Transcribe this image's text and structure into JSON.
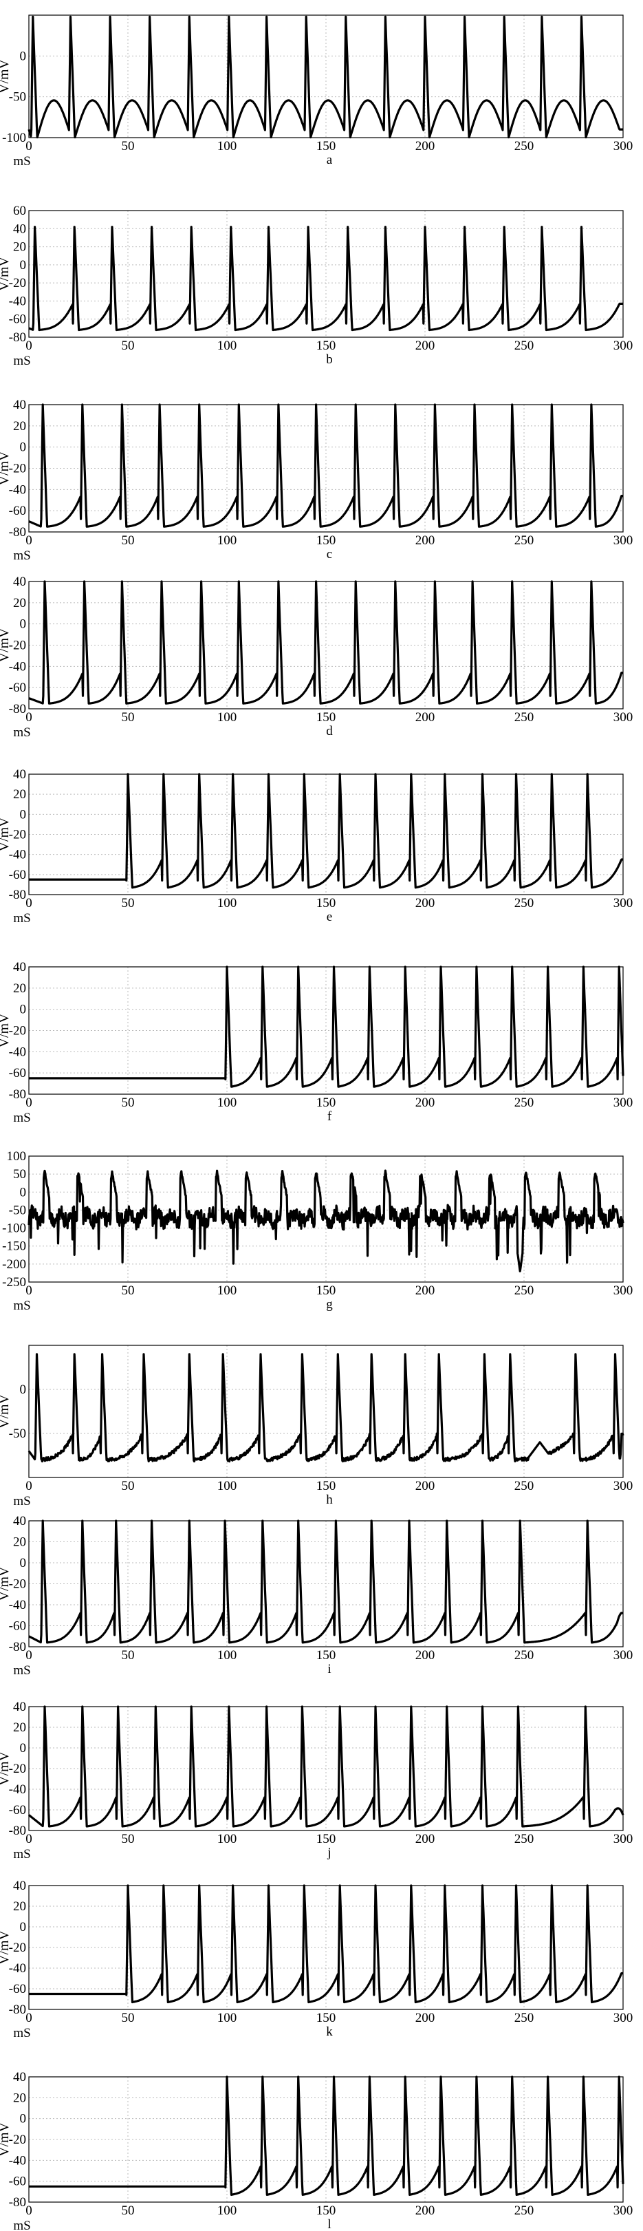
{
  "chart_data": [
    {
      "type": "line",
      "panel": "a",
      "xlim": [
        0,
        300
      ],
      "ylim": [
        -100,
        50
      ],
      "xticks": [
        0,
        50,
        100,
        150,
        200,
        250,
        300
      ],
      "yticks": [
        -100,
        -50,
        0
      ],
      "ylabel": "V/mV",
      "xunit": "mS",
      "label": "a",
      "grid": true,
      "pattern": "periodic",
      "spike_times": [
        2,
        21,
        41,
        61,
        81,
        101,
        120,
        140,
        160,
        180,
        200,
        220,
        240,
        259,
        279
      ],
      "peak": 48,
      "trough": -100,
      "start": -90
    },
    {
      "type": "line",
      "panel": "b",
      "xlim": [
        0,
        300
      ],
      "ylim": [
        -80,
        60
      ],
      "xticks": [
        0,
        50,
        100,
        150,
        200,
        250,
        300
      ],
      "yticks": [
        -80,
        -60,
        -40,
        -20,
        0,
        20,
        40,
        60
      ],
      "ylabel": "V/mV",
      "xunit": "mS",
      "label": "b",
      "grid": true,
      "pattern": "periodic",
      "spike_times": [
        3,
        23,
        42,
        62,
        82,
        102,
        121,
        141,
        161,
        180,
        200,
        220,
        240,
        259,
        279
      ],
      "peak": 42,
      "trough": -72,
      "start": -70
    },
    {
      "type": "line",
      "panel": "c",
      "xlim": [
        0,
        300
      ],
      "ylim": [
        -80,
        40
      ],
      "xticks": [
        0,
        50,
        100,
        150,
        200,
        250,
        300
      ],
      "yticks": [
        -80,
        -60,
        -40,
        -20,
        0,
        20,
        40
      ],
      "ylabel": "V/mV",
      "xunit": "mS",
      "label": "c",
      "grid": true,
      "pattern": "periodic",
      "spike_times": [
        7,
        27,
        47,
        66,
        86,
        106,
        126,
        145,
        165,
        185,
        205,
        225,
        244,
        264,
        284
      ],
      "peak": 40,
      "trough": -75,
      "start": -70
    },
    {
      "type": "line",
      "panel": "d",
      "xlim": [
        0,
        300
      ],
      "ylim": [
        -80,
        40
      ],
      "xticks": [
        0,
        50,
        100,
        150,
        200,
        250,
        300
      ],
      "yticks": [
        -80,
        -60,
        -40,
        -20,
        0,
        20,
        40
      ],
      "ylabel": "V/mV",
      "xunit": "mS",
      "label": "d",
      "grid": true,
      "pattern": "periodic",
      "spike_times": [
        8,
        28,
        47,
        67,
        87,
        106,
        126,
        145,
        165,
        185,
        205,
        224,
        244,
        264,
        284
      ],
      "peak": 40,
      "trough": -75,
      "start": -70
    },
    {
      "type": "line",
      "panel": "e",
      "xlim": [
        0,
        300
      ],
      "ylim": [
        -80,
        40
      ],
      "xticks": [
        0,
        50,
        100,
        150,
        200,
        250,
        300
      ],
      "yticks": [
        -80,
        -60,
        -40,
        -20,
        0,
        20,
        40
      ],
      "ylabel": "V/mV",
      "xunit": "mS",
      "label": "e",
      "grid": true,
      "pattern": "onset",
      "rest": -65,
      "spike_times": [
        50,
        68,
        86,
        103,
        121,
        139,
        157,
        175,
        193,
        210,
        229,
        246,
        264,
        282
      ],
      "peak": 40,
      "trough": -73
    },
    {
      "type": "line",
      "panel": "f",
      "xlim": [
        0,
        300
      ],
      "ylim": [
        -80,
        40
      ],
      "xticks": [
        0,
        50,
        100,
        150,
        200,
        250,
        300
      ],
      "yticks": [
        -80,
        -60,
        -40,
        -20,
        0,
        20,
        40
      ],
      "ylabel": "V/mV",
      "xunit": "mS",
      "label": "f",
      "grid": true,
      "pattern": "onset",
      "rest": -65,
      "spike_times": [
        100,
        118,
        136,
        154,
        172,
        190,
        208,
        226,
        244,
        262,
        280,
        298
      ],
      "peak": 40,
      "trough": -73
    },
    {
      "type": "line",
      "panel": "g",
      "xlim": [
        0,
        300
      ],
      "ylim": [
        -250,
        100
      ],
      "xticks": [
        0,
        50,
        100,
        150,
        200,
        250,
        300
      ],
      "yticks": [
        -250,
        -200,
        -150,
        -100,
        -50,
        0,
        50,
        100
      ],
      "ylabel": "",
      "xunit": "mS",
      "label": "g",
      "grid": true,
      "pattern": "noisy",
      "spike_times": [
        8,
        25,
        42,
        60,
        77,
        95,
        110,
        128,
        145,
        163,
        180,
        198,
        216,
        233,
        251,
        268,
        286
      ],
      "peak": 55,
      "baseline": -70,
      "noise": 45,
      "dip": {
        "x": 248,
        "y": -220
      }
    },
    {
      "type": "line",
      "panel": "h",
      "xlim": [
        0,
        300
      ],
      "ylim": [
        -100,
        50
      ],
      "xticks": [
        0,
        50,
        100,
        150,
        200,
        250,
        300
      ],
      "yticks": [
        -50,
        0
      ],
      "ylabel": "V/mV",
      "xunit": "mS",
      "label": "h",
      "grid": true,
      "pattern": "irregular",
      "spike_times": [
        4,
        23,
        37,
        58,
        81,
        98,
        117,
        138,
        156,
        173,
        190,
        207,
        230,
        243,
        276,
        296
      ],
      "peak": 40,
      "trough": -80,
      "start": -70,
      "bump": {
        "x": 258,
        "y": -60
      }
    },
    {
      "type": "line",
      "panel": "i",
      "xlim": [
        0,
        300
      ],
      "ylim": [
        -80,
        40
      ],
      "xticks": [
        0,
        50,
        100,
        150,
        200,
        250,
        300
      ],
      "yticks": [
        -80,
        -60,
        -40,
        -20,
        0,
        20,
        40
      ],
      "ylabel": "V/mV",
      "xunit": "mS",
      "label": "i",
      "grid": true,
      "pattern": "periodic",
      "spike_times": [
        7,
        27,
        44,
        62,
        81,
        99,
        118,
        136,
        155,
        173,
        192,
        211,
        229,
        248,
        282
      ],
      "peak": 40,
      "trough": -76,
      "start": -70,
      "end_rise": -48
    },
    {
      "type": "line",
      "panel": "j",
      "xlim": [
        0,
        300
      ],
      "ylim": [
        -80,
        40
      ],
      "xticks": [
        0,
        50,
        100,
        150,
        200,
        250,
        300
      ],
      "yticks": [
        -80,
        -60,
        -40,
        -20,
        0,
        20,
        40
      ],
      "ylabel": "V/mV",
      "xunit": "mS",
      "label": "j",
      "grid": true,
      "pattern": "periodic",
      "spike_times": [
        8,
        27,
        45,
        64,
        82,
        101,
        120,
        138,
        157,
        175,
        193,
        211,
        229,
        247,
        281
      ],
      "peak": 40,
      "trough": -76,
      "start": -65,
      "end_rise": -65
    },
    {
      "type": "line",
      "panel": "k",
      "xlim": [
        0,
        300
      ],
      "ylim": [
        -80,
        40
      ],
      "xticks": [
        0,
        50,
        100,
        150,
        200,
        250,
        300
      ],
      "yticks": [
        -80,
        -60,
        -40,
        -20,
        0,
        20,
        40
      ],
      "ylabel": "V/mV",
      "xunit": "mS",
      "label": "k",
      "grid": true,
      "pattern": "onset",
      "rest": -65,
      "spike_times": [
        50,
        68,
        86,
        103,
        121,
        139,
        157,
        175,
        193,
        210,
        229,
        246,
        264,
        282
      ],
      "peak": 40,
      "trough": -73
    },
    {
      "type": "line",
      "panel": "l",
      "xlim": [
        0,
        300
      ],
      "ylim": [
        -80,
        40
      ],
      "xticks": [
        0,
        50,
        100,
        150,
        200,
        250,
        300
      ],
      "yticks": [
        -80,
        -60,
        -40,
        -20,
        0,
        20,
        40
      ],
      "ylabel": "V/mV",
      "xunit": "mS",
      "label": "l",
      "grid": true,
      "pattern": "onset",
      "rest": -65,
      "spike_times": [
        100,
        118,
        136,
        154,
        172,
        190,
        208,
        226,
        244,
        262,
        280,
        298
      ],
      "peak": 40,
      "trough": -73
    }
  ]
}
